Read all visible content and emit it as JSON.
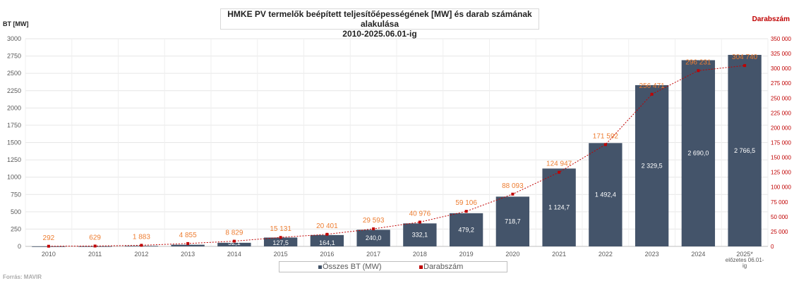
{
  "title": {
    "line1": "HMKE PV termelők beépített teljesítőépességének [MW] és darab számának alakulása",
    "line2": "2010-2025.06.01-ig"
  },
  "source": "Forrás: MAVIR",
  "colors": {
    "bar": "#44546a",
    "line": "#c00000",
    "line_label": "#ed7d31",
    "axis_text": "#595959",
    "grid": "#e6e6e6"
  },
  "chart_data": {
    "type": "bar",
    "categories": [
      "2010",
      "2011",
      "2012",
      "2013",
      "2014",
      "2015",
      "2016",
      "2017",
      "2018",
      "2019",
      "2020",
      "2021",
      "2022",
      "2023",
      "2024",
      "2025*\nelőzetes 06.01-\nig"
    ],
    "series": [
      {
        "name": "Összes BT (MW)",
        "type": "bar",
        "axis": "left",
        "values": [
          0.5,
          1.5,
          7.0,
          24.0,
          52.1,
          127.5,
          164.1,
          240.0,
          332.1,
          479.2,
          718.7,
          1124.7,
          1492.4,
          2329.5,
          2690.0,
          2766.5
        ],
        "labels": [
          "",
          "",
          "",
          "",
          "52,1",
          "127,5",
          "164,1",
          "240,0",
          "332,1",
          "479,2",
          "718,7",
          "1 124,7",
          "1 492,4",
          "2 329,5",
          "2 690,0",
          "2 766,5"
        ]
      },
      {
        "name": "Darabszám",
        "type": "line",
        "axis": "right",
        "values": [
          292,
          629,
          1883,
          4855,
          8829,
          15131,
          20401,
          29593,
          40976,
          59106,
          88093,
          124947,
          171592,
          256471,
          296231,
          304740
        ],
        "labels": [
          "292",
          "629",
          "1 883",
          "4 855",
          "8 829",
          "15 131",
          "20 401",
          "29 593",
          "40 976",
          "59 106",
          "88 093",
          "124 947",
          "171 592",
          "256 471",
          "296 231",
          "304 740"
        ]
      }
    ],
    "left_axis": {
      "label": "BT [MW]",
      "ylim": [
        0,
        3000
      ],
      "ticks": [
        "0",
        "250",
        "500",
        "750",
        "1000",
        "1250",
        "1500",
        "1750",
        "2000",
        "2250",
        "2500",
        "2750",
        "3000"
      ]
    },
    "right_axis": {
      "label": "Darabszám",
      "ylim": [
        0,
        350000
      ],
      "ticks": [
        "0",
        "25 000",
        "50 000",
        "75 000",
        "100 000",
        "125 000",
        "150 000",
        "175 000",
        "200 000",
        "225 000",
        "250 000",
        "275 000",
        "300 000",
        "325 000",
        "350 000"
      ]
    },
    "grid": true,
    "legend": {
      "position": "bottom",
      "entries": [
        "Összes BT (MW)",
        "Darabszám"
      ]
    }
  }
}
